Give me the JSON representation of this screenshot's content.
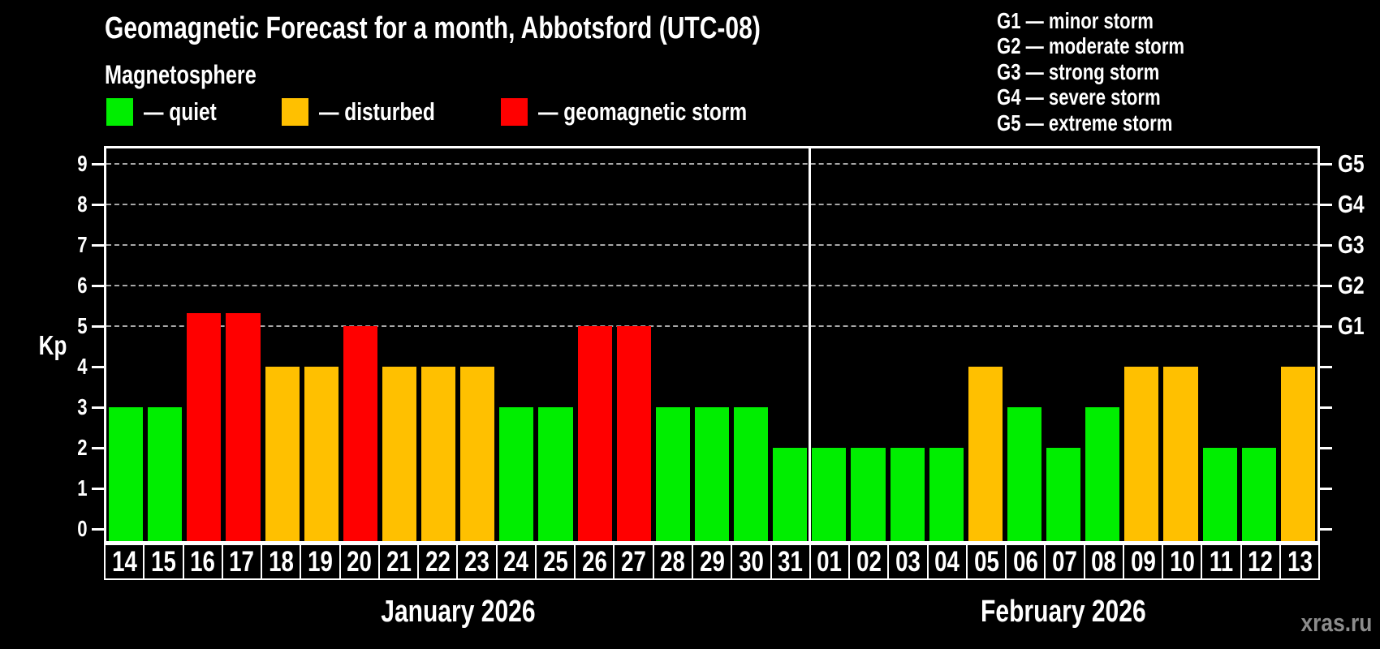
{
  "title": "Geomagnetic Forecast for a month, Abbotsford (UTC-08)",
  "subtitle": "Magnetosphere",
  "condition_legend": [
    {
      "key": "quiet",
      "swatch_color": "#00ee00",
      "label": "— quiet"
    },
    {
      "key": "disturbed",
      "swatch_color": "#ffc000",
      "label": "— disturbed"
    },
    {
      "key": "storm",
      "swatch_color": "#ff0000",
      "label": "— geomagnetic storm"
    }
  ],
  "storm_scale_legend": [
    "G1 — minor storm",
    "G2 — moderate storm",
    "G3 — strong storm",
    "G4 — severe storm",
    "G5 — extreme storm"
  ],
  "watermark": "xras.ru",
  "chart_data": {
    "type": "bar",
    "ylabel": "Kp",
    "ylim": [
      0,
      9.4
    ],
    "yticks": [
      0,
      1,
      2,
      3,
      4,
      5,
      6,
      7,
      8,
      9
    ],
    "gridlines_at": [
      5,
      6,
      7,
      8,
      9
    ],
    "grid": "dashed horizontal at Kp 5-9 only",
    "legend_position": "top",
    "right_axis_labels": [
      {
        "kp": 5,
        "label": "G1"
      },
      {
        "kp": 6,
        "label": "G2"
      },
      {
        "kp": 7,
        "label": "G3"
      },
      {
        "kp": 8,
        "label": "G4"
      },
      {
        "kp": 9,
        "label": "G5"
      }
    ],
    "colors": {
      "quiet": "#00ee00",
      "disturbed": "#ffc000",
      "storm": "#ff0000"
    },
    "months": [
      {
        "label": "January 2026",
        "days": [
          {
            "day": "14",
            "kp": 3,
            "condition": "quiet"
          },
          {
            "day": "15",
            "kp": 3,
            "condition": "quiet"
          },
          {
            "day": "16",
            "kp": 5.33,
            "condition": "storm"
          },
          {
            "day": "17",
            "kp": 5.33,
            "condition": "storm"
          },
          {
            "day": "18",
            "kp": 4,
            "condition": "disturbed"
          },
          {
            "day": "19",
            "kp": 4,
            "condition": "disturbed"
          },
          {
            "day": "20",
            "kp": 5,
            "condition": "storm"
          },
          {
            "day": "21",
            "kp": 4,
            "condition": "disturbed"
          },
          {
            "day": "22",
            "kp": 4,
            "condition": "disturbed"
          },
          {
            "day": "23",
            "kp": 4,
            "condition": "disturbed"
          },
          {
            "day": "24",
            "kp": 3,
            "condition": "quiet"
          },
          {
            "day": "25",
            "kp": 3,
            "condition": "quiet"
          },
          {
            "day": "26",
            "kp": 5,
            "condition": "storm"
          },
          {
            "day": "27",
            "kp": 5,
            "condition": "storm"
          },
          {
            "day": "28",
            "kp": 3,
            "condition": "quiet"
          },
          {
            "day": "29",
            "kp": 3,
            "condition": "quiet"
          },
          {
            "day": "30",
            "kp": 3,
            "condition": "quiet"
          },
          {
            "day": "31",
            "kp": 2,
            "condition": "quiet"
          }
        ]
      },
      {
        "label": "February 2026",
        "days": [
          {
            "day": "01",
            "kp": 2,
            "condition": "quiet"
          },
          {
            "day": "02",
            "kp": 2,
            "condition": "quiet"
          },
          {
            "day": "03",
            "kp": 2,
            "condition": "quiet"
          },
          {
            "day": "04",
            "kp": 2,
            "condition": "quiet"
          },
          {
            "day": "05",
            "kp": 4,
            "condition": "disturbed"
          },
          {
            "day": "06",
            "kp": 3,
            "condition": "quiet"
          },
          {
            "day": "07",
            "kp": 2,
            "condition": "quiet"
          },
          {
            "day": "08",
            "kp": 3,
            "condition": "quiet"
          },
          {
            "day": "09",
            "kp": 4,
            "condition": "disturbed"
          },
          {
            "day": "10",
            "kp": 4,
            "condition": "disturbed"
          },
          {
            "day": "11",
            "kp": 2,
            "condition": "quiet"
          },
          {
            "day": "12",
            "kp": 2,
            "condition": "quiet"
          },
          {
            "day": "13",
            "kp": 4,
            "condition": "disturbed"
          }
        ]
      }
    ]
  }
}
